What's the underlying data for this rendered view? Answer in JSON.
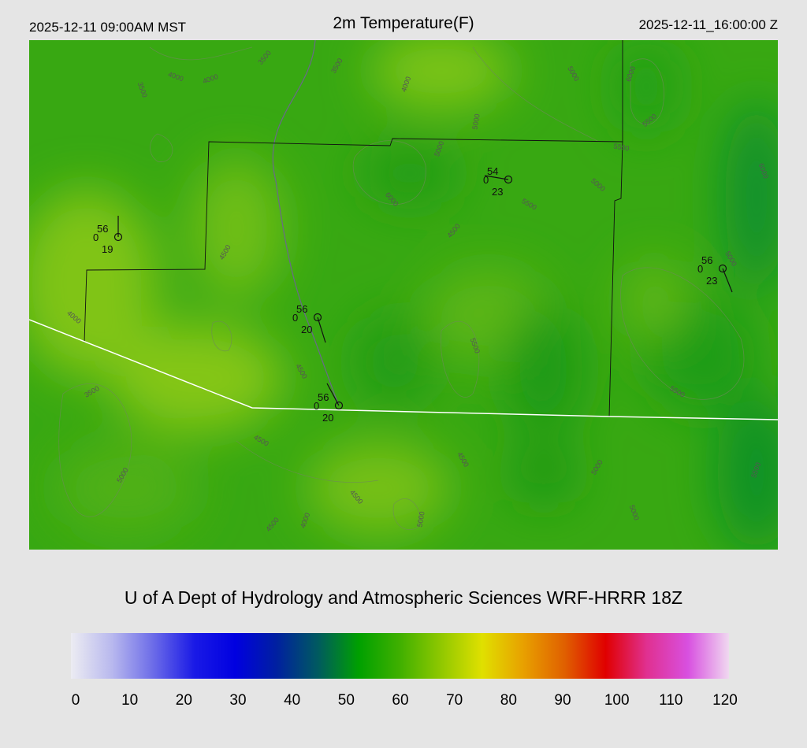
{
  "header": {
    "left": "2025-12-11 09:00AM MST",
    "title": "2m Temperature(F)",
    "right": "2025-12-11_16:00:00 Z"
  },
  "stations": [
    {
      "temperature": 56,
      "extra": 0,
      "dewpoint": 19
    },
    {
      "temperature": 54,
      "extra": 0,
      "dewpoint": 23
    },
    {
      "temperature": 56,
      "extra": 0,
      "dewpoint": 23
    },
    {
      "temperature": 56,
      "extra": 0,
      "dewpoint": 20
    },
    {
      "temperature": 56,
      "extra": 0,
      "dewpoint": 20
    }
  ],
  "contour_labels": [
    3500,
    4000,
    4000,
    3500,
    3500,
    4000,
    5000,
    5000,
    6000,
    4500,
    5500,
    5000,
    5500,
    6000,
    5500,
    5000,
    6000,
    5000,
    4500,
    4000,
    3500,
    4500,
    5500,
    5500,
    4500,
    4500,
    5000,
    4500,
    4500,
    4000,
    5000,
    5000,
    5000,
    5500
  ],
  "footer": {
    "title": "U of A Dept of Hydrology and Atmospheric Sciences WRF-HRRR 18Z"
  },
  "colorbar": {
    "lim": [
      0,
      120
    ],
    "ticks": [
      0,
      10,
      20,
      30,
      40,
      50,
      60,
      70,
      80,
      90,
      100,
      110,
      120
    ],
    "colors": [
      "#ececf2",
      "#b8b8ee",
      "#6c6ce8",
      "#1a1ae6",
      "#0000e0",
      "#0020a0",
      "#005a60",
      "#00a000",
      "#40b000",
      "#90c800",
      "#e0e000",
      "#e8a000",
      "#e06000",
      "#e00000",
      "#e03090",
      "#d850e0",
      "#f0d8f0"
    ]
  }
}
